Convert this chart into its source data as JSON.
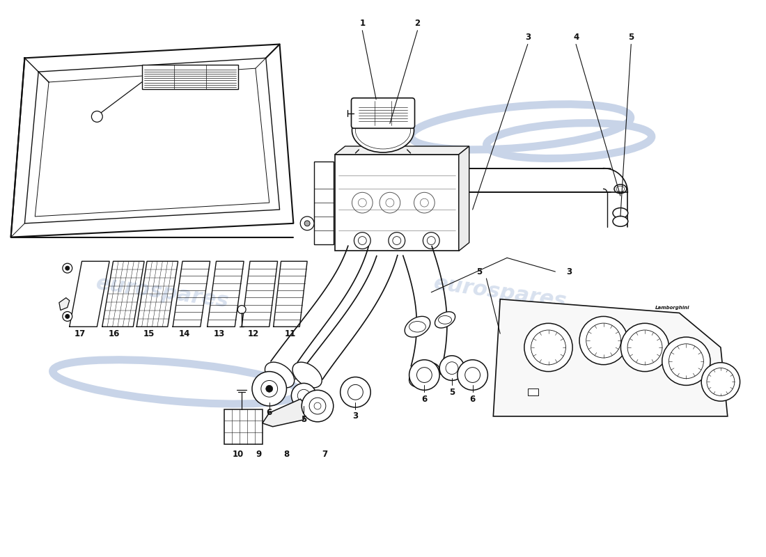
{
  "bg_color": "#ffffff",
  "line_color": "#111111",
  "watermark_color": "#c8d4e8",
  "watermark_text": "eurospares",
  "figsize": [
    11.0,
    8.0
  ],
  "dpi": 100
}
